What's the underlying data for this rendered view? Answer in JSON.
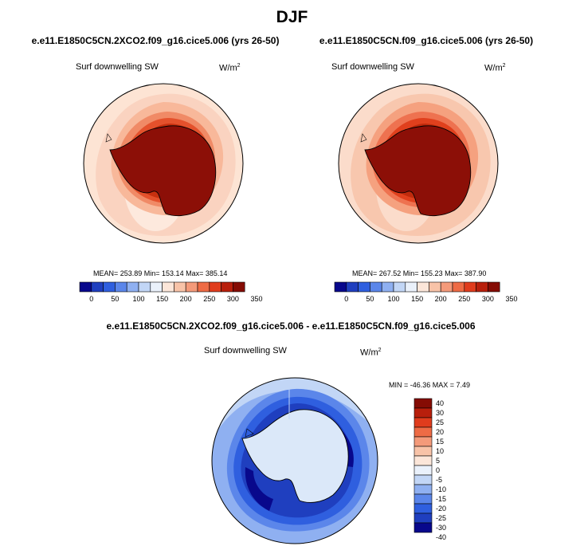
{
  "figure": {
    "title": "DJF"
  },
  "panels": [
    {
      "title": "e.e11.E1850C5CN.2XCO2.f09_g16.cice5.006 (yrs 26-50)",
      "variable": "Surf downwelling SW",
      "units_base": "W/m",
      "units_exp": "2",
      "stats": "MEAN= 253.89  Min= 153.14  Max= 385.14"
    },
    {
      "title": "e.e11.E1850C5CN.f09_g16.cice5.006 (yrs 26-50)",
      "variable": "Surf downwelling SW",
      "units_base": "W/m",
      "units_exp": "2",
      "stats": "MEAN= 267.52  Min= 155.23  Max= 387.90"
    },
    {
      "title": "e.e11.E1850C5CN.2XCO2.f09_g16.cice5.006 - e.e11.E1850C5CN.f09_g16.cice5.006",
      "variable": "Surf downwelling SW",
      "units_base": "W/m",
      "units_exp": "2",
      "stats": "MIN = -46.36 MAX =   7.49"
    }
  ],
  "colorbars": {
    "absolute": {
      "colors": [
        "#08088c",
        "#1f3fbf",
        "#2f5fdf",
        "#5b86ea",
        "#8fb0f1",
        "#c2d6f6",
        "#eaf1fb",
        "#fce6d9",
        "#f8c3a8",
        "#f49a7a",
        "#ee6b45",
        "#e03c1d",
        "#b81f0c",
        "#850c04"
      ],
      "labels": [
        "0",
        "50",
        "100",
        "150",
        "200",
        "250",
        "300",
        "350"
      ]
    },
    "difference": {
      "colors": [
        "#850c04",
        "#b81f0c",
        "#e03c1d",
        "#ee6b45",
        "#f49a7a",
        "#f8c3a8",
        "#fce6d9",
        "#eaf1fb",
        "#c2d6f6",
        "#8fb0f1",
        "#5b86ea",
        "#2f5fdf",
        "#1f3fbf",
        "#08088c"
      ],
      "labels": [
        "40",
        "30",
        "25",
        "20",
        "15",
        "10",
        "5",
        "0",
        "-5",
        "-10",
        "-15",
        "-20",
        "-25",
        "-30",
        "-40"
      ]
    }
  }
}
